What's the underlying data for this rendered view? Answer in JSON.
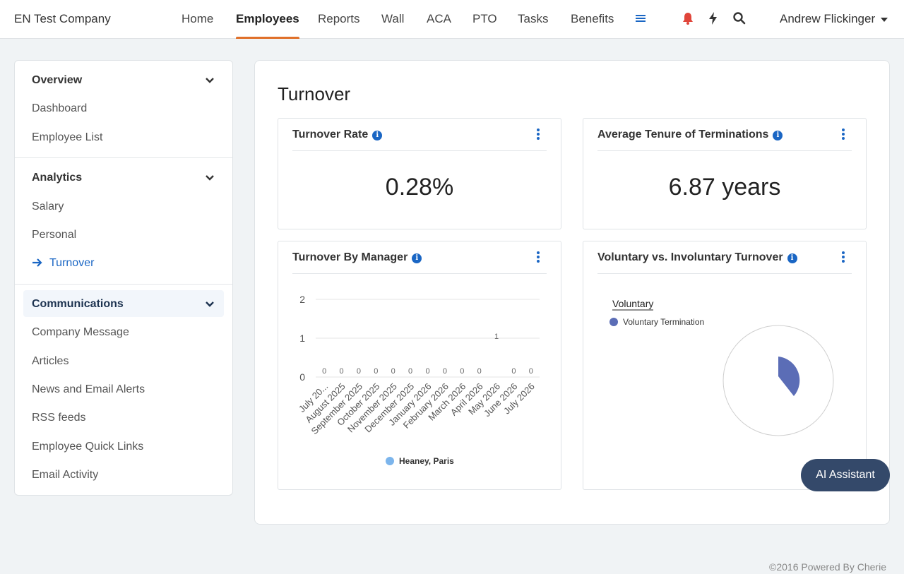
{
  "header": {
    "brand": "EN Test Company",
    "nav": [
      "Home",
      "Employees",
      "Reports",
      "Wall",
      "ACA",
      "PTO",
      "Tasks",
      "Benefits"
    ],
    "active_nav": "Employees",
    "user": "Andrew Flickinger"
  },
  "sidebar": {
    "sections": [
      {
        "title": "Overview",
        "items": [
          "Dashboard",
          "Employee List"
        ]
      },
      {
        "title": "Analytics",
        "items": [
          "Salary",
          "Personal",
          "Turnover"
        ]
      },
      {
        "title": "Communications",
        "items": [
          "Company Message",
          "Articles",
          "News and Email Alerts",
          "RSS feeds",
          "Employee Quick Links",
          "Email Activity"
        ]
      }
    ],
    "active_item": "Turnover"
  },
  "page": {
    "title": "Turnover"
  },
  "cards": {
    "turnover_rate": {
      "title": "Turnover Rate",
      "value": "0.28%"
    },
    "avg_tenure": {
      "title": "Average Tenure of Terminations",
      "value": "6.87 years"
    },
    "by_manager": {
      "title": "Turnover By Manager"
    },
    "voluntary": {
      "title": "Voluntary vs. Involuntary Turnover"
    }
  },
  "chart_data": [
    {
      "type": "bar",
      "categories": [
        "July 20...",
        "August 2025",
        "September 2025",
        "October 2025",
        "November 2025",
        "December 2025",
        "January 2026",
        "February 2026",
        "March 2026",
        "April 2026",
        "May 2026",
        "June 2026",
        "July 2026"
      ],
      "series": [
        {
          "name": "Heaney, Paris",
          "values": [
            0,
            0,
            0,
            0,
            0,
            0,
            0,
            0,
            0,
            0,
            1,
            0,
            0
          ],
          "labels": [
            "0",
            "0",
            "0",
            "0",
            "0",
            "0",
            "0",
            "0",
            "0",
            "0",
            "1",
            "0",
            "0"
          ],
          "color": "#7cb5ec"
        }
      ],
      "yticks": [
        "0",
        "1",
        "2"
      ],
      "ylim": [
        0,
        2
      ],
      "legend": "bottom"
    },
    {
      "type": "pie",
      "legend_title": "Voluntary",
      "slices": [
        {
          "name": "Voluntary Termination",
          "value": 1,
          "color": "#5b6db6"
        }
      ],
      "legend": "top-left"
    }
  ],
  "ai_button": "AI Assistant",
  "footer": "©2016 Powered By Cherie"
}
